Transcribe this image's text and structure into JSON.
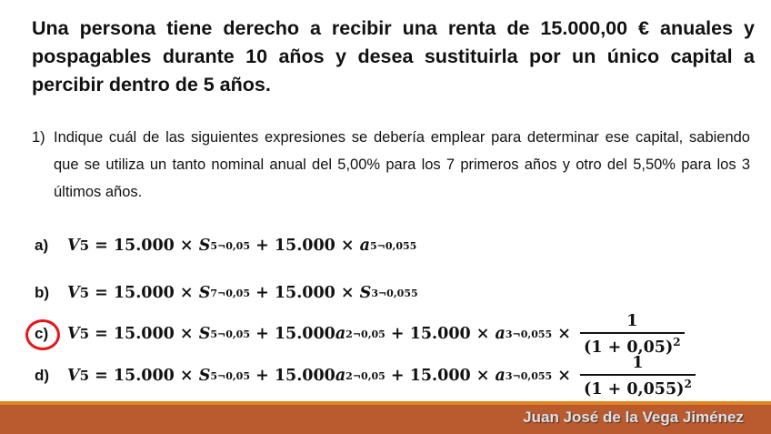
{
  "title": "Una persona tiene derecho a recibir una renta de 15.000,00 € anuales y pospagables durante 10 años y desea sustituirla por un único capital a percibir dentro de 5 años.",
  "question": {
    "number": "1)",
    "text": "Indique cuál de las siguientes expresiones se debería emplear para determinar ese capital, sabiendo que se utiliza un tanto nominal anual del 5,00% para los 7 primeros años y otro del 5,50% para los 3 últimos años."
  },
  "options": [
    {
      "label": "a)",
      "selected": false,
      "parts": [
        [
          "i",
          "V"
        ],
        [
          "s",
          "5"
        ],
        [
          "t",
          " = 15.000 × "
        ],
        [
          "i",
          "S"
        ],
        [
          "s",
          "5¬0,05"
        ],
        [
          "t",
          " + 15.000 × "
        ],
        [
          "i",
          "a"
        ],
        [
          "s",
          "5¬0,055"
        ]
      ]
    },
    {
      "label": "b)",
      "selected": false,
      "parts": [
        [
          "i",
          "V"
        ],
        [
          "s",
          "5"
        ],
        [
          "t",
          " = 15.000 × "
        ],
        [
          "i",
          "S"
        ],
        [
          "s",
          "7¬0,05"
        ],
        [
          "t",
          " + 15.000 × "
        ],
        [
          "i",
          "S"
        ],
        [
          "s",
          "3¬0,055"
        ]
      ]
    },
    {
      "label": "c)",
      "selected": true,
      "parts": [
        [
          "i",
          "V"
        ],
        [
          "s",
          "5"
        ],
        [
          "t",
          " = 15.000 × "
        ],
        [
          "i",
          "S"
        ],
        [
          "s",
          "5¬0,05"
        ],
        [
          "t",
          " + 15.000"
        ],
        [
          "i",
          "a"
        ],
        [
          "s",
          "2¬0,05"
        ],
        [
          "t",
          " + 15.000 × "
        ],
        [
          "i",
          "a"
        ],
        [
          "s",
          "3¬0,055"
        ],
        [
          "t",
          " × "
        ],
        [
          "f",
          "1",
          "(1 + 0,05)",
          "2"
        ]
      ]
    },
    {
      "label": "d)",
      "selected": false,
      "parts": [
        [
          "i",
          "V"
        ],
        [
          "s",
          "5"
        ],
        [
          "t",
          " = 15.000 × "
        ],
        [
          "i",
          "S"
        ],
        [
          "s",
          "5¬0,05"
        ],
        [
          "t",
          " + 15.000"
        ],
        [
          "i",
          "a"
        ],
        [
          "s",
          "2¬0,05"
        ],
        [
          "t",
          " + 15.000 × "
        ],
        [
          "i",
          "a"
        ],
        [
          "s",
          "3¬0,055"
        ],
        [
          "t",
          " × "
        ],
        [
          "f",
          "1",
          "(1 + 0,055)",
          "2"
        ]
      ]
    }
  ],
  "footer": {
    "author": "Juan José de la Vega Jiménez"
  },
  "colors": {
    "footer_bar": "#b95a2f",
    "footer_line": "#e4821f",
    "selection_circle": "#e8141a"
  }
}
